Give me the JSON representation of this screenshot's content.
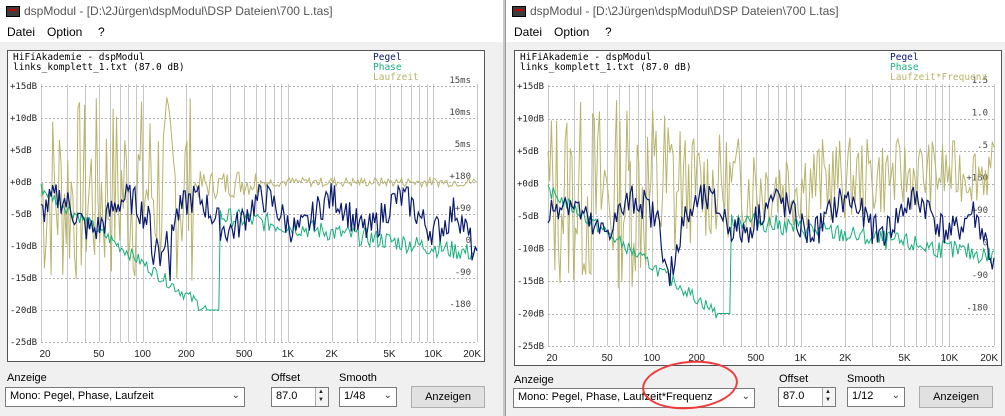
{
  "windows": [
    {
      "id": "left",
      "title": "dspModul - [D:\\2Jürgen\\dspModul\\DSP Dateien\\700 L.tas]",
      "menu": [
        "Datei",
        "Option",
        "?"
      ],
      "plot_header": [
        "HiFiAkademie - dspModul",
        "links_komplett_1.txt  (87.0 dB)"
      ],
      "legend": [
        "Pegel",
        "Phase",
        "Laufzeit"
      ],
      "y_labels": [
        "+15dB",
        "+10dB",
        "+5dB",
        "+0dB",
        "-5dB",
        "-10dB",
        "-15dB",
        "-20dB",
        "-25dB"
      ],
      "right_labels": [
        "15ms",
        "10ms",
        "5ms",
        "+180",
        "+90",
        "0",
        "-90",
        "-180"
      ],
      "x_labels": [
        "20",
        "50",
        "100",
        "200",
        "500",
        "1K",
        "2K",
        "5K",
        "10K",
        "20K"
      ],
      "anzeige_label": "Anzeige",
      "anzeige_value": "Mono: Pegel, Phase, Laufzeit",
      "offset_label": "Offset",
      "offset_value": "87.0",
      "smooth_label": "Smooth",
      "smooth_value": "1/48",
      "button_label": "Anzeigen"
    },
    {
      "id": "right",
      "title": "dspModul - [D:\\2Jürgen\\dspModul\\DSP Dateien\\700 L.tas]",
      "menu": [
        "Datei",
        "Option",
        "?"
      ],
      "plot_header": [
        "HiFiAkademie - dspModul",
        "links_komplett_1.txt  (87.0 dB)"
      ],
      "legend": [
        "Pegel",
        "Phase",
        "Laufzeit*Frequenz"
      ],
      "y_labels": [
        "+15dB",
        "+10dB",
        "+5dB",
        "+0dB",
        "-5dB",
        "-10dB",
        "-15dB",
        "-20dB",
        "-25dB"
      ],
      "right_labels": [
        "1.5",
        "1.0",
        ".5",
        "+180",
        "+90",
        "0",
        "-90",
        "-180"
      ],
      "x_labels": [
        "20",
        "50",
        "100",
        "200",
        "500",
        "1K",
        "2K",
        "5K",
        "10K",
        "20K"
      ],
      "anzeige_label": "Anzeige",
      "anzeige_value": "Mono: Pegel, Phase, Laufzeit*Frequenz",
      "offset_label": "Offset",
      "offset_value": "87.0",
      "smooth_label": "Smooth",
      "smooth_value": "1/12",
      "button_label": "Anzeigen"
    }
  ],
  "colors": {
    "pegel": "#0a1a6e",
    "phase": "#16b07a",
    "laufzeit": "#b8b46c",
    "grid": "#c8c8c8",
    "annotation": "#ef3b3b"
  }
}
